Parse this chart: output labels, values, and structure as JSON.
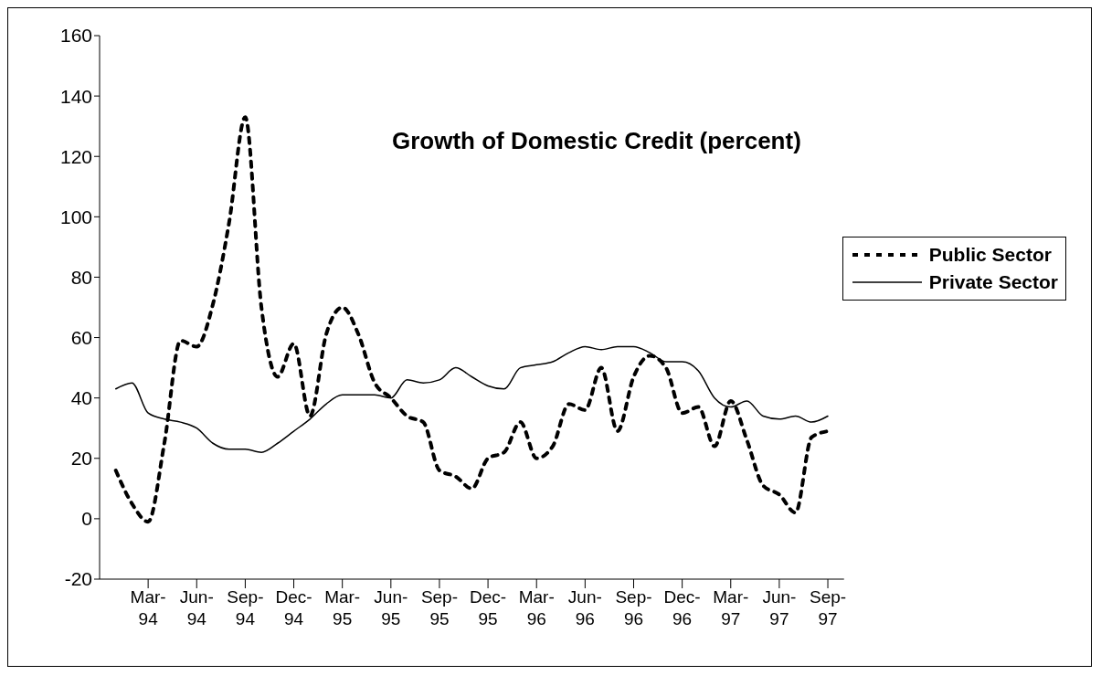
{
  "chart_data": {
    "type": "line",
    "title": "Growth of Domestic Credit (percent)",
    "x": [
      "1994-01",
      "1994-02",
      "1994-03",
      "1994-04",
      "1994-05",
      "1994-06",
      "1994-07",
      "1994-08",
      "1994-09",
      "1994-10",
      "1994-11",
      "1994-12",
      "1995-01",
      "1995-02",
      "1995-03",
      "1995-04",
      "1995-05",
      "1995-06",
      "1995-07",
      "1995-08",
      "1995-09",
      "1995-10",
      "1995-11",
      "1995-12",
      "1996-01",
      "1996-02",
      "1996-03",
      "1996-04",
      "1996-05",
      "1996-06",
      "1996-07",
      "1996-08",
      "1996-09",
      "1996-10",
      "1996-11",
      "1996-12",
      "1997-01",
      "1997-02",
      "1997-03",
      "1997-04",
      "1997-05",
      "1997-06",
      "1997-07",
      "1997-08",
      "1997-09"
    ],
    "series": [
      {
        "name": "Public Sector",
        "color": "#000000",
        "line_style": "dashed",
        "values": [
          16,
          5,
          -1,
          25,
          59,
          57,
          71,
          98,
          133,
          70,
          47,
          58,
          34,
          61,
          70,
          61,
          45,
          40,
          34,
          32,
          16,
          14,
          10,
          20,
          22,
          32,
          20,
          24,
          38,
          36,
          50,
          29,
          47,
          54,
          50,
          35,
          37,
          24,
          39,
          26,
          11,
          8,
          2,
          27,
          29
        ]
      },
      {
        "name": "Private Sector",
        "color": "#000000",
        "line_style": "solid",
        "values": [
          43,
          45,
          35,
          33,
          32,
          30,
          25,
          23,
          23,
          22,
          25,
          29,
          33,
          38,
          41,
          41,
          41,
          40,
          46,
          45,
          46,
          50,
          47,
          44,
          43,
          50,
          51,
          52,
          55,
          57,
          56,
          57,
          57,
          55,
          52,
          52,
          49,
          40,
          37,
          39,
          34,
          33,
          34,
          32,
          34
        ]
      }
    ],
    "xlim": [
      "1993-12",
      "1997-10"
    ],
    "xticks": [
      {
        "value": "1994-03",
        "label": "Mar-94"
      },
      {
        "value": "1994-06",
        "label": "Jun-94"
      },
      {
        "value": "1994-09",
        "label": "Sep-94"
      },
      {
        "value": "1994-12",
        "label": "Dec-94"
      },
      {
        "value": "1995-03",
        "label": "Mar-95"
      },
      {
        "value": "1995-06",
        "label": "Jun-95"
      },
      {
        "value": "1995-09",
        "label": "Sep-95"
      },
      {
        "value": "1995-12",
        "label": "Dec-95"
      },
      {
        "value": "1996-03",
        "label": "Mar-96"
      },
      {
        "value": "1996-06",
        "label": "Jun-96"
      },
      {
        "value": "1996-09",
        "label": "Sep-96"
      },
      {
        "value": "1996-12",
        "label": "Dec-96"
      },
      {
        "value": "1997-03",
        "label": "Mar-97"
      },
      {
        "value": "1997-06",
        "label": "Jun-97"
      },
      {
        "value": "1997-09",
        "label": "Sep-97"
      }
    ],
    "ylim": [
      -20,
      160
    ],
    "yticks": [
      -20,
      0,
      20,
      40,
      60,
      80,
      100,
      120,
      140,
      160
    ],
    "grid": false,
    "legend": "right",
    "marker": "none"
  }
}
